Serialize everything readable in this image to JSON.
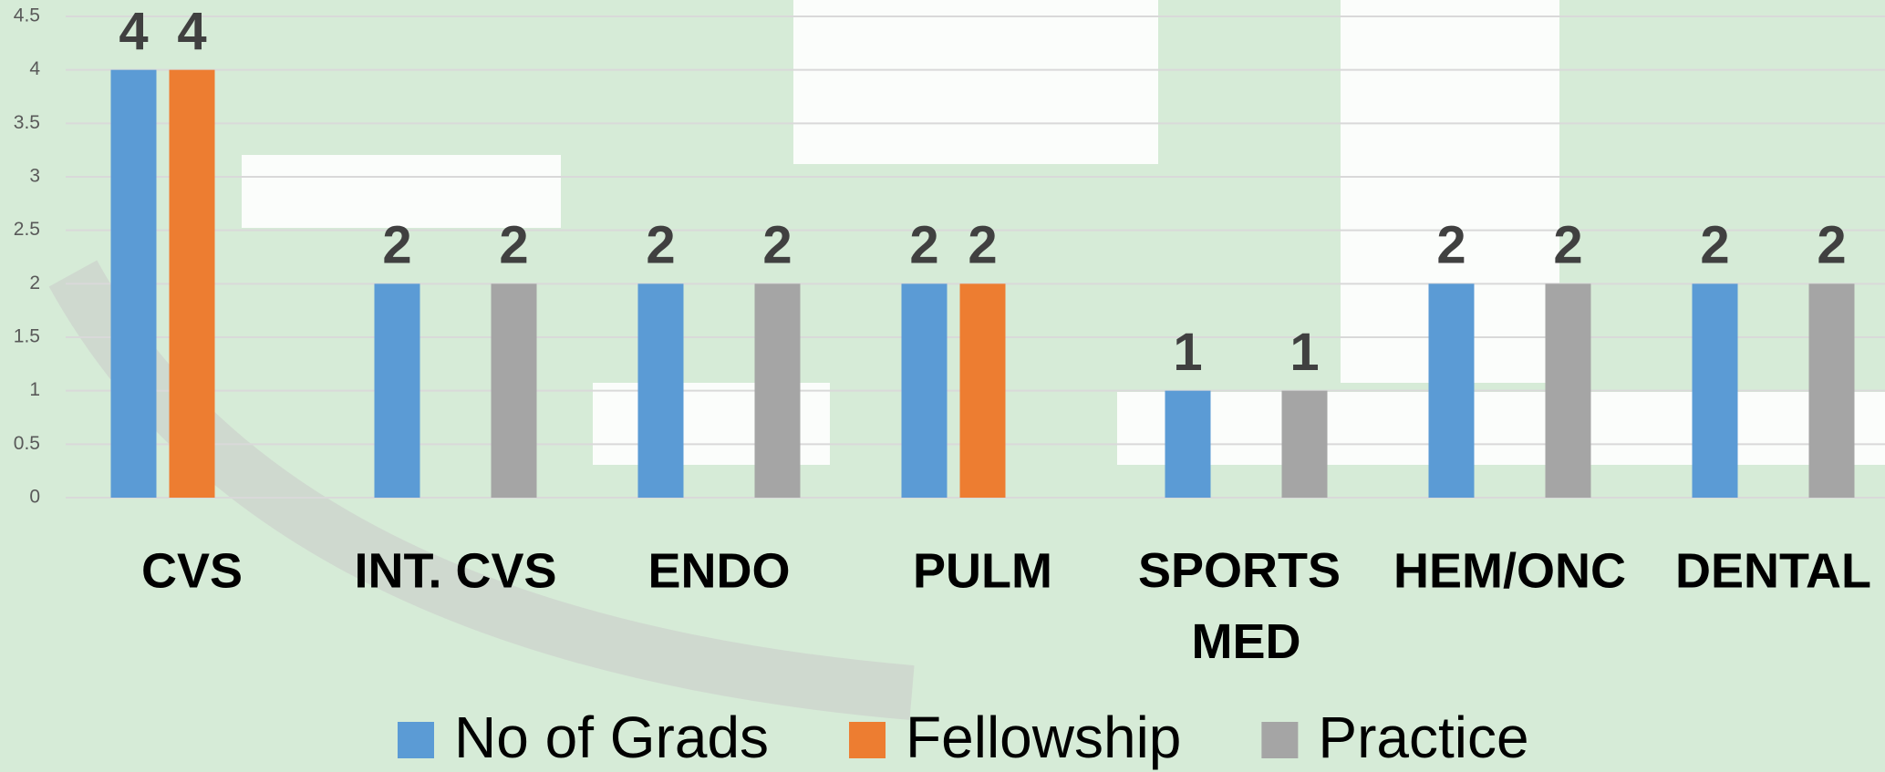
{
  "chart_data": {
    "type": "bar",
    "categories": [
      "CVS",
      "INT. CVS",
      "ENDO",
      "PULM",
      "SPORTS MED",
      "HEM/ONC",
      "DENTAL"
    ],
    "series": [
      {
        "name": "No of Grads",
        "color": "#5b9bd5",
        "values": [
          4,
          2,
          2,
          2,
          1,
          2,
          2
        ]
      },
      {
        "name": "Fellowship",
        "color": "#ed7d31",
        "values": [
          4,
          null,
          null,
          2,
          null,
          null,
          null
        ]
      },
      {
        "name": "Practice",
        "color": "#a5a5a5",
        "values": [
          null,
          2,
          2,
          null,
          1,
          2,
          2
        ]
      }
    ],
    "ylim": [
      0,
      4.5
    ],
    "yticks": [
      0,
      0.5,
      1,
      1.5,
      2,
      2.5,
      3,
      3.5,
      4,
      4.5
    ],
    "grid": true,
    "legend": "bottom"
  }
}
